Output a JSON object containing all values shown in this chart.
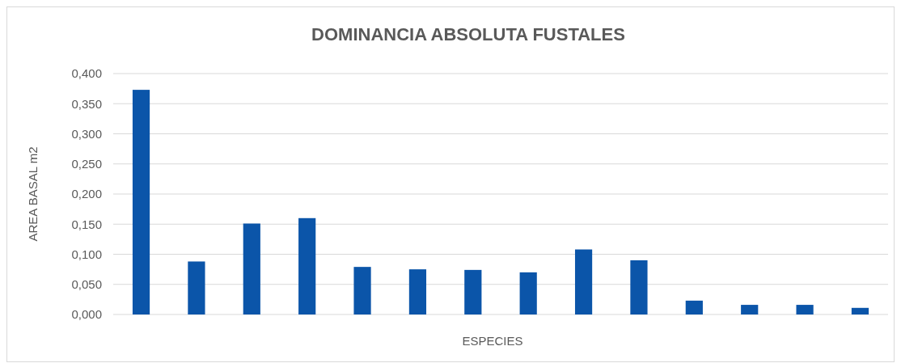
{
  "chart_data": {
    "type": "bar",
    "title": "DOMINANCIA ABSOLUTA FUSTALES",
    "xlabel": "ESPECIES",
    "ylabel": "AREA BASAL m2",
    "categories": [
      null,
      null,
      null,
      null,
      null,
      null,
      null,
      null,
      null,
      null,
      null,
      null,
      null,
      null
    ],
    "values": [
      0.373,
      0.088,
      0.151,
      0.16,
      0.079,
      0.075,
      0.074,
      0.07,
      0.108,
      0.09,
      0.023,
      0.016,
      0.016,
      0.011
    ],
    "color": "#0b55a9",
    "ylim": [
      0,
      0.4
    ],
    "yticks": [
      {
        "value": 0,
        "label": "0,000"
      },
      {
        "value": 0.05,
        "label": "0,050"
      },
      {
        "value": 0.1,
        "label": "0,100"
      },
      {
        "value": 0.15,
        "label": "0,150"
      },
      {
        "value": 0.2,
        "label": "0,200"
      },
      {
        "value": 0.25,
        "label": "0,250"
      },
      {
        "value": 0.3,
        "label": "0,300"
      },
      {
        "value": 0.35,
        "label": "0,350"
      },
      {
        "value": 0.4,
        "label": "0,400"
      }
    ],
    "grid": "y"
  }
}
